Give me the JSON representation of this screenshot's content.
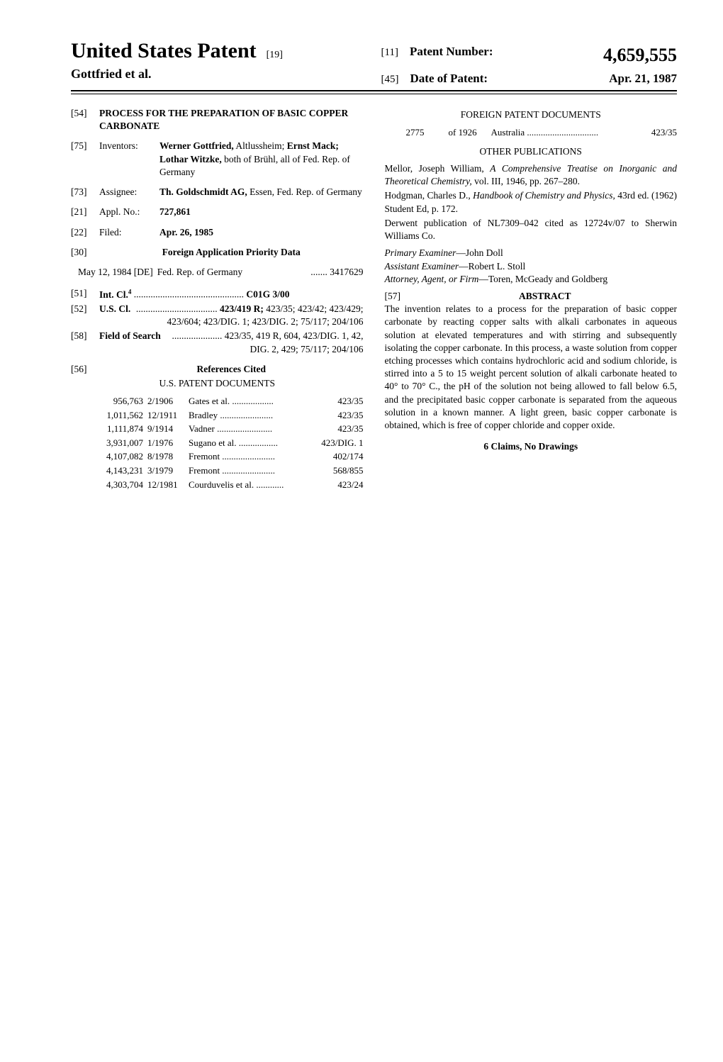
{
  "header": {
    "title": "United States Patent",
    "title_code": "[19]",
    "inventor_line": "Gottfried et al.",
    "patent_num_label": "[11]",
    "patent_num_text": "Patent Number:",
    "patent_number": "4,659,555",
    "date_label": "[45]",
    "date_text": "Date of Patent:",
    "date_value": "Apr. 21, 1987"
  },
  "left_col": {
    "f54": {
      "num": "[54]",
      "text": "PROCESS FOR THE PREPARATION OF BASIC COPPER CARBONATE"
    },
    "f75": {
      "num": "[75]",
      "label": "Inventors:",
      "text": "Werner Gottfried, Altlussheim; Ernst Mack; Lothar Witzke, both of Brühl, all of Fed. Rep. of Germany"
    },
    "f75_bold_names": "Werner Gottfried,",
    "f75_bold_names2": "Ernst Mack; Lothar Witzke,",
    "f73": {
      "num": "[73]",
      "label": "Assignee:",
      "text_bold": "Th. Goldschmidt AG,",
      "text_rest": " Essen, Fed. Rep. of Germany"
    },
    "f21": {
      "num": "[21]",
      "label": "Appl. No.:",
      "text": "727,861"
    },
    "f22": {
      "num": "[22]",
      "label": "Filed:",
      "text": "Apr. 26, 1985"
    },
    "f30": {
      "num": "[30]",
      "text": "Foreign Application Priority Data"
    },
    "f30_row": {
      "date": "May 12, 1984 [DE]",
      "country": "Fed. Rep. of Germany",
      "number": "....... 3417629"
    },
    "f51": {
      "num": "[51]",
      "label": "Int. Cl.",
      "sup": "4",
      "dots": "..............................................",
      "text": "C01G 3/00"
    },
    "f52": {
      "num": "[52]",
      "label": "U.S. Cl.",
      "dots": "..................................",
      "bold": "423/419 R;",
      "rest": " 423/35; 423/42; 423/429; 423/604; 423/DIG. 1; 423/DIG. 2; 75/117; 204/106"
    },
    "f58": {
      "num": "[58]",
      "label": "Field of Search",
      "dots": ".....................",
      "text": "423/35, 419 R, 604, 423/DIG. 1, 42, DIG. 2, 429; 75/117; 204/106"
    },
    "f56": {
      "num": "[56]",
      "text": "References Cited"
    },
    "us_docs_heading": "U.S. PATENT DOCUMENTS",
    "us_refs": [
      {
        "num": "956,763",
        "date": "2/1906",
        "inventor": "Gates et al.",
        "cls": "423/35"
      },
      {
        "num": "1,011,562",
        "date": "12/1911",
        "inventor": "Bradley",
        "cls": "423/35"
      },
      {
        "num": "1,111,874",
        "date": "9/1914",
        "inventor": "Vadner",
        "cls": "423/35"
      },
      {
        "num": "3,931,007",
        "date": "1/1976",
        "inventor": "Sugano et al.",
        "cls": "423/DIG. 1"
      },
      {
        "num": "4,107,082",
        "date": "8/1978",
        "inventor": "Fremont",
        "cls": "402/174"
      },
      {
        "num": "4,143,231",
        "date": "3/1979",
        "inventor": "Fremont",
        "cls": "568/855"
      },
      {
        "num": "4,303,704",
        "date": "12/1981",
        "inventor": "Courduvelis et al.",
        "cls": "423/24"
      }
    ]
  },
  "right_col": {
    "foreign_heading": "FOREIGN PATENT DOCUMENTS",
    "foreign_ref": {
      "num": "2775",
      "date": "of 1926",
      "country": "Australia",
      "cls": "423/35"
    },
    "other_pub_heading": "OTHER PUBLICATIONS",
    "pubs": [
      "Mellor, Joseph William, <i>A Comprehensive Treatise on Inorganic and Theoretical Chemistry,</i> vol. III, 1946, pp. 267–280.",
      "Hodgman, Charles D., <i>Handbook of Chemistry and Physics,</i> 43rd ed. (1962) Student Ed, p. 172.",
      "Derwent publication of NL7309–042 cited as 12724v/07 to Sherwin Williams Co."
    ],
    "primary_examiner_label": "Primary Examiner",
    "primary_examiner": "—John Doll",
    "assistant_examiner_label": "Assistant Examiner",
    "assistant_examiner": "—Robert L. Stoll",
    "attorney_label": "Attorney, Agent, or Firm",
    "attorney": "—Toren, McGeady and Goldberg",
    "f57": "[57]",
    "abstract_heading": "ABSTRACT",
    "abstract_text": "The invention relates to a process for the preparation of basic copper carbonate by reacting copper salts with alkali carbonates in aqueous solution at elevated temperatures and with stirring and subsequently isolating the copper carbonate. In this process, a waste solution from copper etching processes which contains hydrochloric acid and sodium chloride, is stirred into a 5 to 15 weight percent solution of alkali carbonate heated to 40° to 70° C., the pH of the solution not being allowed to fall below 6.5, and the precipitated basic copper carbonate is separated from the aqueous solution in a known manner. A light green, basic copper carbonate is obtained, which is free of copper chloride and copper oxide.",
    "claims_line": "6 Claims, No Drawings"
  }
}
